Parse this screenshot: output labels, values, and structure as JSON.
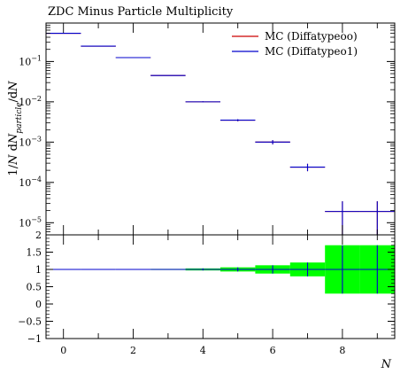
{
  "chart_data": {
    "type": "line",
    "title": "ZDC Minus Particle Multiplicity",
    "xlabel": "N",
    "ylabel": "1/N dN_particle/dN",
    "x_ticks": [
      0,
      2,
      4,
      6,
      8
    ],
    "xlim": [
      -0.5,
      9.5
    ],
    "y_log": true,
    "ylim": [
      5e-06,
      0.9
    ],
    "y_ticks": [
      {
        "value": 1e-05,
        "label": "10−5"
      },
      {
        "value": 0.0001,
        "label": "10−4"
      },
      {
        "value": 0.001,
        "label": "10−3"
      },
      {
        "value": 0.01,
        "label": "10−2"
      },
      {
        "value": 0.1,
        "label": "10−1"
      }
    ],
    "legend_position": "top-right",
    "series": [
      {
        "name": "MC (Diffatypeoo)",
        "color": "#cc0000",
        "bins": [
          {
            "x": 0,
            "y": 0.5
          },
          {
            "x": 1,
            "y": 0.24
          },
          {
            "x": 2,
            "y": 0.125
          },
          {
            "x": 3,
            "y": 0.045
          },
          {
            "x": 4,
            "y": 0.01,
            "err": 0.0003
          },
          {
            "x": 5,
            "y": 0.0035,
            "err": 0.0002
          },
          {
            "x": 6,
            "y": 0.001,
            "err": 0.00012
          },
          {
            "x": 7,
            "y": 0.00024,
            "err": 5e-05
          },
          {
            "x": 8,
            "y": 1.9e-05,
            "err_lo": 1.4e-05,
            "err_hi": 1.5e-05
          },
          {
            "x": 9,
            "y": 1.9e-05,
            "err_lo": 1.4e-05,
            "err_hi": 1.5e-05
          }
        ]
      },
      {
        "name": "MC (Diffatypeo1)",
        "color": "#0000cc",
        "bins": [
          {
            "x": 0,
            "y": 0.5
          },
          {
            "x": 1,
            "y": 0.24
          },
          {
            "x": 2,
            "y": 0.125
          },
          {
            "x": 3,
            "y": 0.045
          },
          {
            "x": 4,
            "y": 0.01,
            "err": 0.0003
          },
          {
            "x": 5,
            "y": 0.0035,
            "err": 0.0002
          },
          {
            "x": 6,
            "y": 0.001,
            "err": 0.00012
          },
          {
            "x": 7,
            "y": 0.00024,
            "err": 5e-05
          },
          {
            "x": 8,
            "y": 1.9e-05,
            "err_lo": 1.4e-05,
            "err_hi": 1.5e-05
          },
          {
            "x": 9,
            "y": 1.9e-05,
            "err_lo": 1.4e-05,
            "err_hi": 1.5e-05
          }
        ]
      }
    ],
    "ratio": {
      "ylim": [
        -1,
        2
      ],
      "y_ticks": [
        -1,
        -0.5,
        0,
        0.5,
        1,
        1.5,
        2
      ],
      "y_tick_labels": [
        "−1",
        "−0.5",
        "0",
        "0.5",
        "1",
        "1.5",
        "2"
      ],
      "band_color": "#00ff00",
      "band": [
        {
          "x": 0,
          "lo": 0.995,
          "hi": 1.005
        },
        {
          "x": 1,
          "lo": 0.995,
          "hi": 1.005
        },
        {
          "x": 2,
          "lo": 0.99,
          "hi": 1.01
        },
        {
          "x": 3,
          "lo": 0.985,
          "hi": 1.015
        },
        {
          "x": 4,
          "lo": 0.97,
          "hi": 1.03
        },
        {
          "x": 5,
          "lo": 0.94,
          "hi": 1.06
        },
        {
          "x": 6,
          "lo": 0.88,
          "hi": 1.12
        },
        {
          "x": 7,
          "lo": 0.8,
          "hi": 1.2
        },
        {
          "x": 8,
          "lo": 0.3,
          "hi": 1.7
        },
        {
          "x": 9,
          "lo": 0.3,
          "hi": 1.7
        }
      ],
      "err_lines": [
        {
          "x": 4,
          "lo": 0.97,
          "hi": 1.03
        },
        {
          "x": 5,
          "lo": 0.94,
          "hi": 1.06
        },
        {
          "x": 6,
          "lo": 0.88,
          "hi": 1.12
        },
        {
          "x": 7,
          "lo": 0.8,
          "hi": 1.2
        },
        {
          "x": 8,
          "lo": 0.3,
          "hi": 1.7
        },
        {
          "x": 9,
          "lo": 0.3,
          "hi": 1.7
        }
      ]
    }
  }
}
